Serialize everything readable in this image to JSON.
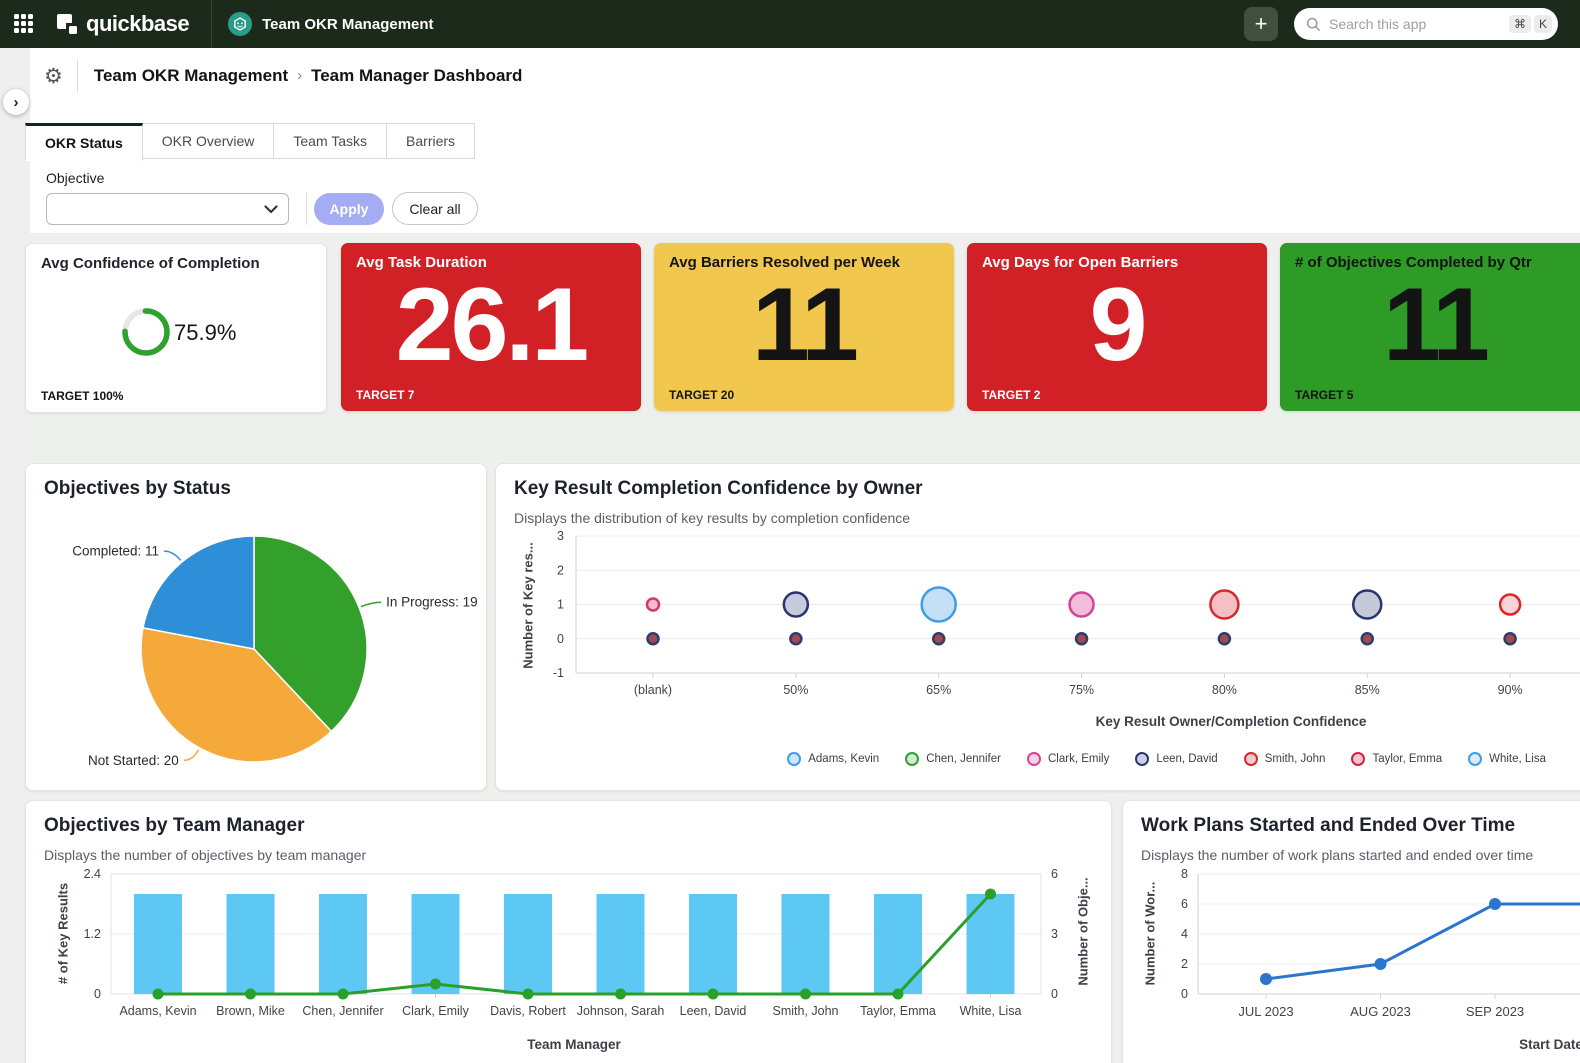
{
  "topnav": {
    "logo_text": "quickbase",
    "app_name": "Team OKR Management",
    "plus_label": "+",
    "search_placeholder": "Search this app",
    "shortcut_mod": "⌘",
    "shortcut_key": "K"
  },
  "header": {
    "breadcrumb": [
      "Team OKR Management",
      "Team Manager Dashboard"
    ],
    "separator": "›",
    "gear_icon": "⚙"
  },
  "tabs": [
    {
      "label": "OKR Status",
      "active": true
    },
    {
      "label": "OKR Overview",
      "active": false
    },
    {
      "label": "Team Tasks",
      "active": false
    },
    {
      "label": "Barriers",
      "active": false
    }
  ],
  "filter": {
    "label": "Objective",
    "value": "",
    "apply": "Apply",
    "clear": "Clear all"
  },
  "kpis": [
    {
      "title": "Avg Confidence of Completion",
      "value": "75.9%",
      "target": "TARGET 100%",
      "type": "donut",
      "percent": 75.9,
      "ring_color": "#2fa12f",
      "track_color": "#e7e7e7",
      "bg": "#ffffff",
      "text": "#161616"
    },
    {
      "title": "Avg Task Duration",
      "value": "26.1",
      "target": "TARGET 7",
      "bg": "#d22027",
      "text": "#ffffff"
    },
    {
      "title": "Avg Barriers Resolved per Week",
      "value": "11",
      "target": "TARGET 20",
      "bg": "#f1c84d",
      "text": "#141414"
    },
    {
      "title": "Avg Days for Open Barriers",
      "value": "9",
      "target": "TARGET 2",
      "bg": "#d22027",
      "text": "#ffffff"
    },
    {
      "title": "# of Objectives Completed by Qtr",
      "value": "11",
      "target": "TARGET 5",
      "bg": "#2f9b27",
      "text": "#141414"
    }
  ],
  "chart_data": [
    {
      "id": "objectives_by_status",
      "type": "pie",
      "title": "Objectives by Status",
      "slices": [
        {
          "label": "In Progress",
          "value": 19,
          "color": "#33a02c"
        },
        {
          "label": "Not Started",
          "value": 20,
          "color": "#f6a93b"
        },
        {
          "label": "Completed",
          "value": 11,
          "color": "#2e8fd8"
        }
      ]
    },
    {
      "id": "kr_confidence",
      "type": "scatter",
      "title": "Key Result Completion Confidence by Owner",
      "subtitle": "Displays the distribution of key results by completion confidence",
      "xlabel": "Key Result Owner/Completion Confidence",
      "ylabel": "Number of Key res...",
      "ylim": [
        -1,
        3
      ],
      "yticks": [
        3,
        2,
        1,
        0,
        -1
      ],
      "categories": [
        "(blank)",
        "50%",
        "65%",
        "75%",
        "80%",
        "85%",
        "90%"
      ],
      "bubbles": [
        {
          "category": "(blank)",
          "y": 1,
          "r": 6,
          "owner": "Taylor, Emma",
          "stroke": "#d23a62",
          "fill": "#f6bcd0"
        },
        {
          "category": "50%",
          "y": 1,
          "r": 12,
          "owner": "Leen, David",
          "stroke": "#2a356f",
          "fill": "#c6cadd"
        },
        {
          "category": "65%",
          "y": 1,
          "r": 17,
          "owner": "Adams, Kevin",
          "stroke": "#3f9ce8",
          "fill": "#c4e0f7"
        },
        {
          "category": "75%",
          "y": 1,
          "r": 12,
          "owner": "Clark, Emily",
          "stroke": "#d2439b",
          "fill": "#f3bcd9"
        },
        {
          "category": "80%",
          "y": 1,
          "r": 14,
          "owner": "Smith, John",
          "stroke": "#d32b2b",
          "fill": "#f4c0c3"
        },
        {
          "category": "85%",
          "y": 1,
          "r": 14,
          "owner": "Leen, David",
          "stroke": "#2a356f",
          "fill": "#c6cad8"
        },
        {
          "category": "90%",
          "y": 1,
          "r": 10,
          "owner": "Smith, John",
          "stroke": "#e02427",
          "fill": "#f7d4d6"
        }
      ],
      "zero_dots": {
        "y": 0,
        "r": 5.5,
        "stroke": "#2e3c6e",
        "fill": "#a04a52"
      },
      "legend": [
        {
          "label": "Adams, Kevin",
          "stroke": "#3f9ce8",
          "fill": "#cfe6f9"
        },
        {
          "label": "Chen, Jennifer",
          "stroke": "#2fa02f",
          "fill": "#d2ecd0"
        },
        {
          "label": "Clark, Emily",
          "stroke": "#d2439b",
          "fill": "#f6d3e6"
        },
        {
          "label": "Leen, David",
          "stroke": "#2a356f",
          "fill": "#ccd1e2"
        },
        {
          "label": "Smith, John",
          "stroke": "#d32b2b",
          "fill": "#f6cdcf"
        },
        {
          "label": "Taylor, Emma",
          "stroke": "#cf2440",
          "fill": "#f6c3cd"
        },
        {
          "label": "White, Lisa",
          "stroke": "#3f9ce8",
          "fill": "#d9ecfb"
        }
      ]
    },
    {
      "id": "objectives_by_manager",
      "type": "bar-line",
      "title": "Objectives by Team Manager",
      "subtitle": "Displays the number of objectives by team manager",
      "xlabel": "Team Manager",
      "ylabel_left": "# of Key Results",
      "ylabel_right": "Number of Obje...",
      "ylim_left": [
        0,
        2.4
      ],
      "yticks_left": [
        2.4,
        1.2,
        0
      ],
      "ylim_right": [
        0,
        6
      ],
      "yticks_right": [
        6,
        3,
        0
      ],
      "categories": [
        "Adams, Kevin",
        "Brown, Mike",
        "Chen, Jennifer",
        "Clark, Emily",
        "Davis, Robert",
        "Johnson, Sarah",
        "Leen, David",
        "Smith, John",
        "Taylor, Emma",
        "White, Lisa"
      ],
      "bar_series": {
        "name": "# of Key Results",
        "color": "#5ec8f5",
        "values": [
          2,
          2,
          2,
          2,
          2,
          2,
          2,
          2,
          2,
          2
        ]
      },
      "line_series": {
        "name": "Number of Objectives",
        "color": "#2aa02a",
        "axis": "right",
        "values": [
          0,
          0,
          0,
          0.5,
          0,
          0,
          0,
          0,
          0,
          5
        ]
      }
    },
    {
      "id": "work_plans",
      "type": "line",
      "title": "Work Plans Started and Ended Over Time",
      "subtitle": "Displays the number of work plans started and ended over time",
      "xlabel": "Start Date",
      "ylabel": "Number of Wor...",
      "ylim": [
        0,
        8
      ],
      "yticks": [
        8,
        6,
        4,
        2,
        0
      ],
      "categories": [
        "JUL 2023",
        "AUG 2023",
        "SEP 2023"
      ],
      "series": [
        {
          "name": "Work Plans",
          "color": "#2b76cc",
          "values": [
            1,
            2,
            6
          ],
          "extends_right_at": 6
        }
      ]
    }
  ]
}
